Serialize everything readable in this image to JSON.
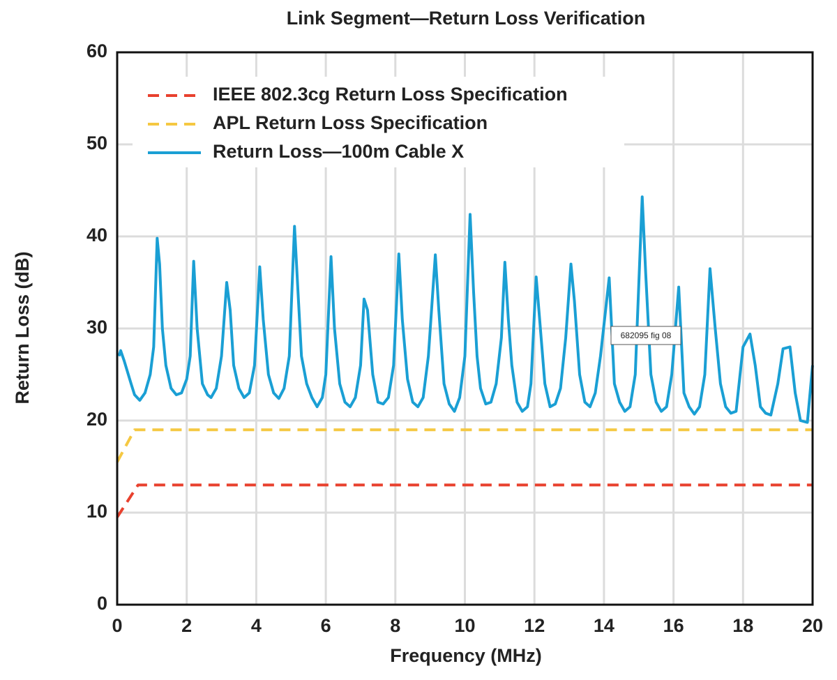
{
  "chart_data": {
    "type": "line",
    "title": "Link Segment—Return Loss Verification",
    "x_label": "Frequency (MHz)",
    "y_label": "Return Loss (dB)",
    "annotation": "682095 fig 08",
    "xlim": [
      0,
      20
    ],
    "xticks": [
      0,
      2,
      4,
      6,
      8,
      10,
      12,
      14,
      16,
      18,
      20
    ],
    "ylim": [
      0,
      60
    ],
    "yticks": [
      0,
      10,
      20,
      30,
      40,
      50,
      60
    ],
    "grid": true,
    "legend": "upper left",
    "series": [
      {
        "name": "IEEE 802.3cg Return Loss Specification",
        "color": "#e8412e",
        "linestyle": "dashed",
        "x": [
          0,
          0.6,
          20
        ],
        "values": [
          9.5,
          13,
          13
        ]
      },
      {
        "name": "APL Return Loss Specification",
        "color": "#f5c842",
        "linestyle": "dashed",
        "x": [
          0,
          0.5,
          20
        ],
        "values": [
          15.5,
          19,
          19
        ]
      },
      {
        "name": "Return Loss—100m Cable X",
        "color": "#1a9fd4",
        "linestyle": "solid",
        "x": [
          0.05,
          0.1,
          0.2,
          0.4,
          0.5,
          0.65,
          0.8,
          0.95,
          1.05,
          1.15,
          1.22,
          1.3,
          1.4,
          1.55,
          1.7,
          1.85,
          2.0,
          2.1,
          2.2,
          2.3,
          2.45,
          2.6,
          2.7,
          2.85,
          3.0,
          3.15,
          3.25,
          3.35,
          3.5,
          3.65,
          3.8,
          3.95,
          4.1,
          4.2,
          4.35,
          4.5,
          4.65,
          4.8,
          4.95,
          5.1,
          5.2,
          5.3,
          5.45,
          5.6,
          5.75,
          5.9,
          6.0,
          6.15,
          6.25,
          6.4,
          6.55,
          6.7,
          6.85,
          7.0,
          7.1,
          7.2,
          7.35,
          7.5,
          7.65,
          7.8,
          7.95,
          8.1,
          8.2,
          8.35,
          8.5,
          8.65,
          8.8,
          8.95,
          9.15,
          9.25,
          9.4,
          9.55,
          9.7,
          9.85,
          10.0,
          10.15,
          10.25,
          10.35,
          10.45,
          10.6,
          10.75,
          10.9,
          11.05,
          11.15,
          11.25,
          11.35,
          11.5,
          11.65,
          11.8,
          11.9,
          12.05,
          12.15,
          12.3,
          12.45,
          12.6,
          12.75,
          12.9,
          13.05,
          13.15,
          13.3,
          13.45,
          13.6,
          13.75,
          13.9,
          14.15,
          14.3,
          14.45,
          14.6,
          14.75,
          14.9,
          15.1,
          15.2,
          15.35,
          15.5,
          15.65,
          15.8,
          15.95,
          16.15,
          16.3,
          16.45,
          16.6,
          16.75,
          16.9,
          17.05,
          17.2,
          17.35,
          17.5,
          17.65,
          17.8,
          18.0,
          18.2,
          18.35,
          18.5,
          18.65,
          18.8,
          19.0,
          19.15,
          19.35,
          19.5,
          19.65,
          19.85,
          20.0
        ],
        "values": [
          27,
          27.6,
          26.5,
          24,
          22.8,
          22.2,
          23,
          25,
          28,
          39.8,
          37,
          30,
          26,
          23.5,
          22.8,
          23,
          24.5,
          27,
          37.3,
          30,
          24,
          22.8,
          22.5,
          23.5,
          27,
          35,
          32,
          26,
          23.5,
          22.5,
          23,
          26,
          36.7,
          31,
          25,
          23,
          22.4,
          23.5,
          27,
          41.1,
          34,
          27,
          24,
          22.5,
          21.5,
          22.5,
          25,
          37.8,
          30,
          24,
          22,
          21.5,
          22.5,
          26,
          33.2,
          32,
          25,
          22,
          21.8,
          22.5,
          26,
          38.1,
          31,
          24.5,
          22,
          21.5,
          22.5,
          27,
          38,
          32,
          24,
          21.8,
          21,
          22.5,
          27,
          42.4,
          34,
          27,
          23.5,
          21.8,
          22,
          24,
          29,
          37.2,
          31,
          26,
          22,
          21,
          21.5,
          24,
          35.6,
          31,
          24,
          21.5,
          21.8,
          23.5,
          29,
          37,
          33,
          25,
          22,
          21.5,
          23,
          27,
          35.5,
          24,
          22,
          21,
          21.5,
          25,
          44.3,
          36,
          25,
          22,
          21,
          21.5,
          25,
          34.5,
          23,
          21.5,
          20.7,
          21.5,
          25,
          36.5,
          30,
          24,
          21.5,
          20.8,
          21,
          28,
          29.4,
          26,
          21.5,
          20.8,
          20.6,
          24,
          27.8,
          28,
          23,
          20,
          19.8,
          26
        ]
      }
    ]
  }
}
